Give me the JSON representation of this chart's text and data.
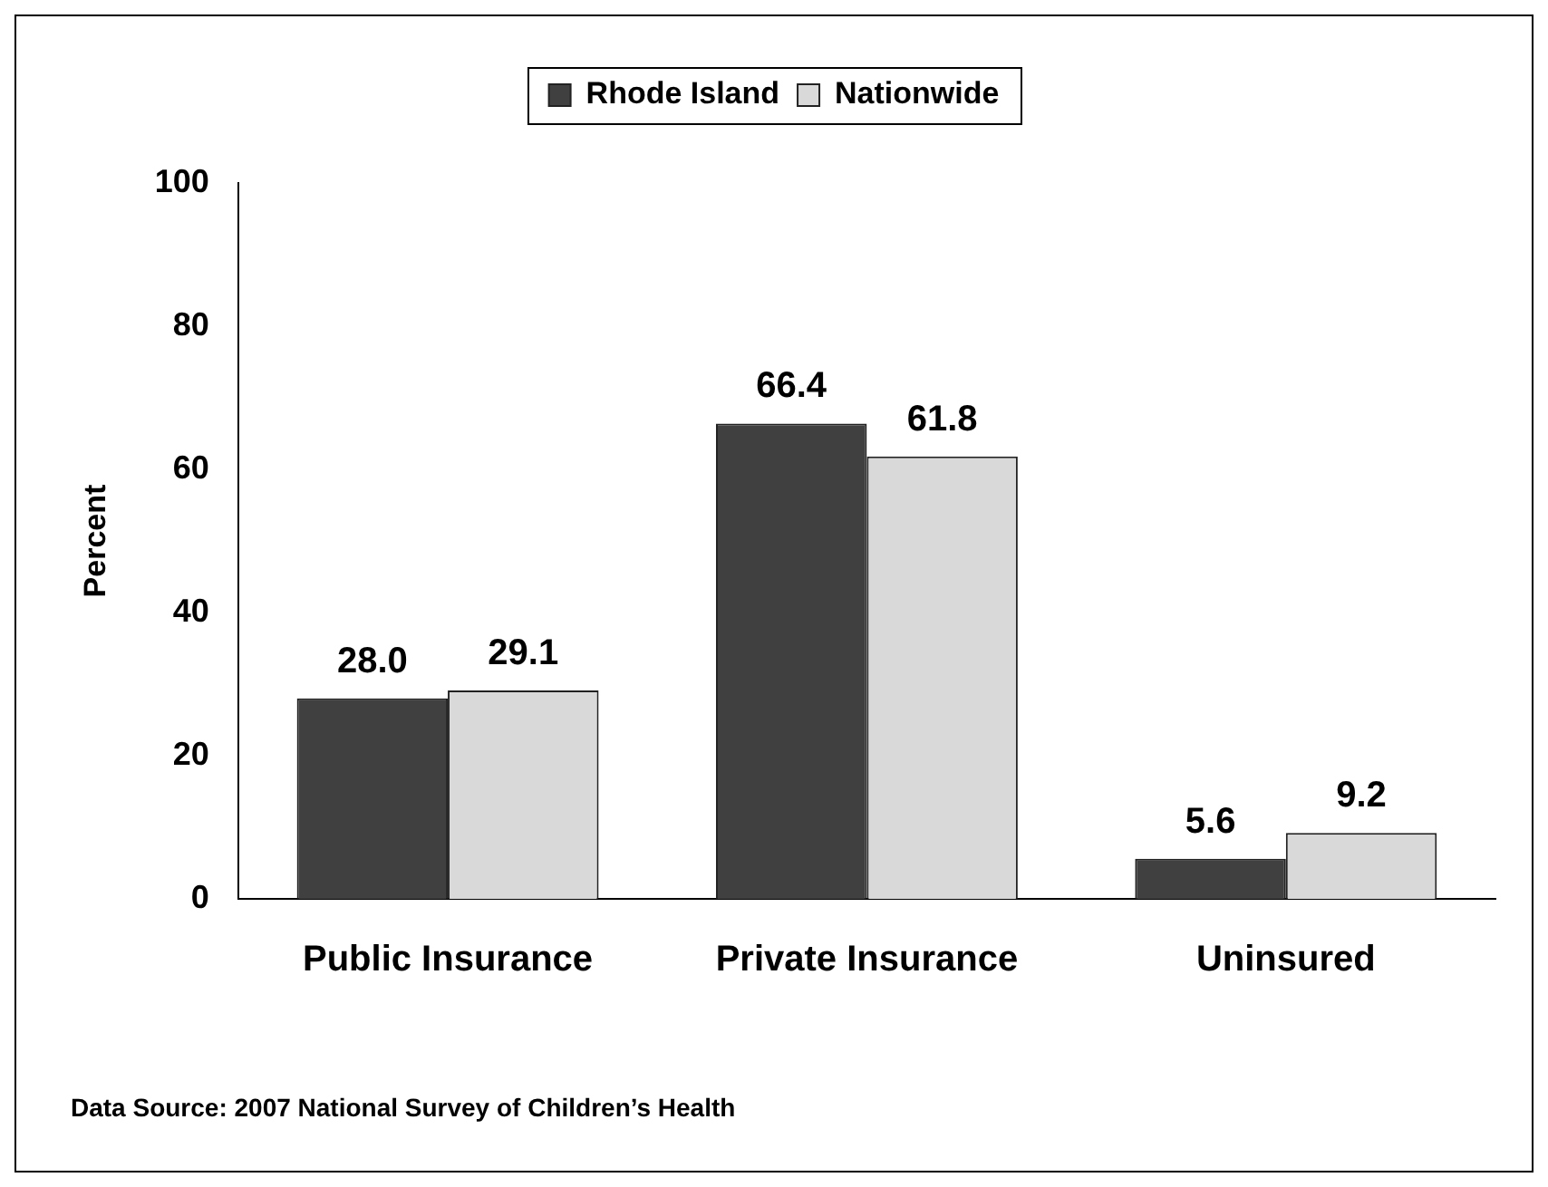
{
  "chart_data": {
    "type": "bar",
    "ylabel": "Percent",
    "categories": [
      "Public Insurance",
      "Private Insurance",
      "Uninsured"
    ],
    "series": [
      {
        "name": "Rhode Island",
        "color": "#404040",
        "values": [
          28.0,
          66.4,
          5.6
        ],
        "value_labels": [
          "28.0",
          "66.4",
          "5.6"
        ]
      },
      {
        "name": "Nationwide",
        "color": "#d9d9d9",
        "values": [
          29.1,
          61.8,
          9.2
        ],
        "value_labels": [
          "29.1",
          "61.8",
          "9.2"
        ]
      }
    ],
    "ylim": [
      0,
      100
    ],
    "yticks": [
      0,
      20,
      40,
      60,
      80,
      100
    ],
    "grid": false,
    "legend": "top",
    "annotations": [
      "Data Source: 2007 National Survey of Children’s Health"
    ]
  }
}
